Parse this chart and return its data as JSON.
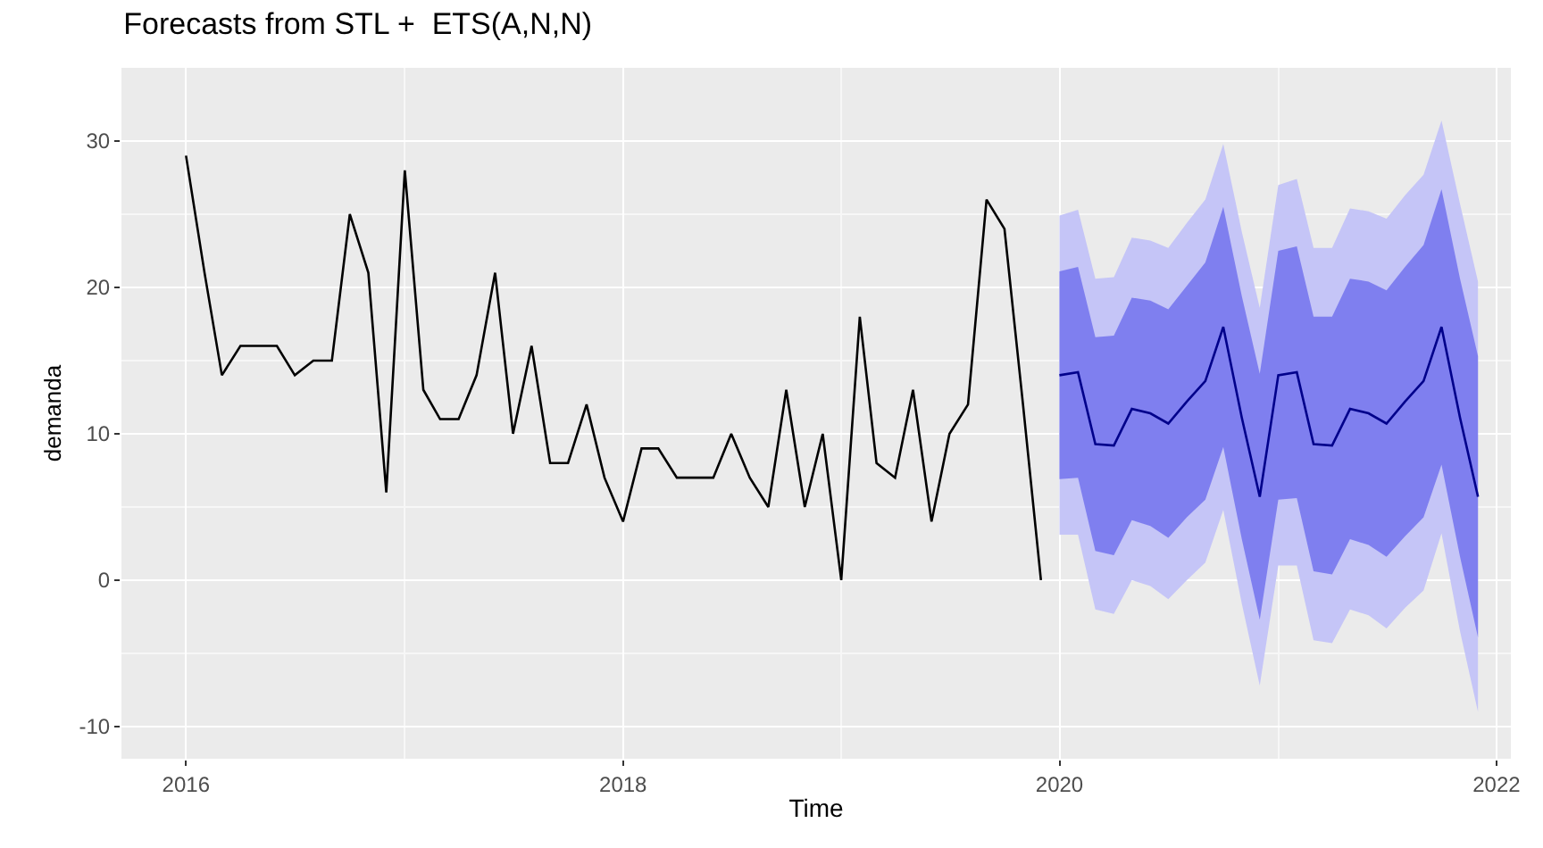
{
  "chart_data": {
    "type": "line",
    "title": "Forecasts from STL +  ETS(A,N,N)",
    "xlabel": "Time",
    "ylabel": "demanda",
    "xlim": [
      "2015-09-15",
      "2022-01-25"
    ],
    "xticks": [
      "2016",
      "2018",
      "2020",
      "2022"
    ],
    "ylim": [
      -12.2,
      35
    ],
    "yticks": [
      -10,
      0,
      10,
      20,
      30
    ],
    "grid": true,
    "series": [
      {
        "color": "#000000",
        "x": [
          "2016-01",
          "2016-02",
          "2016-03",
          "2016-04",
          "2016-05",
          "2016-06",
          "2016-07",
          "2016-08",
          "2016-09",
          "2016-10",
          "2016-11",
          "2016-12",
          "2017-01",
          "2017-02",
          "2017-03",
          "2017-04",
          "2017-05",
          "2017-06",
          "2017-07",
          "2017-08",
          "2017-09",
          "2017-10",
          "2017-11",
          "2017-12",
          "2018-01",
          "2018-02",
          "2018-03",
          "2018-04",
          "2018-05",
          "2018-06",
          "2018-07",
          "2018-08",
          "2018-09",
          "2018-10",
          "2018-11",
          "2018-12",
          "2019-01",
          "2019-02",
          "2019-03",
          "2019-04",
          "2019-05",
          "2019-06",
          "2019-07",
          "2019-08",
          "2019-09",
          "2019-10",
          "2019-11",
          "2019-12"
        ],
        "values": [
          29,
          21,
          14,
          16,
          16,
          16,
          14,
          15,
          15,
          25,
          21,
          6,
          28,
          13,
          11,
          11,
          14,
          21,
          10,
          16,
          8,
          8,
          12,
          7,
          4,
          9,
          9,
          7,
          7,
          7,
          10,
          7,
          5,
          13,
          5,
          10,
          0,
          18,
          8,
          7,
          13,
          4,
          10,
          12,
          26,
          24,
          12,
          0
        ]
      },
      {
        "type": "area",
        "color": "#c5c5f7",
        "x": [
          "2020-01",
          "2020-02",
          "2020-03",
          "2020-04",
          "2020-05",
          "2020-06",
          "2020-07",
          "2020-08",
          "2020-09",
          "2020-10",
          "2020-11",
          "2020-12",
          "2021-01",
          "2021-02",
          "2021-03",
          "2021-04",
          "2021-05",
          "2021-06",
          "2021-07",
          "2021-08",
          "2021-09",
          "2021-10",
          "2021-11",
          "2021-12"
        ],
        "values": [
          null,
          null,
          null,
          null,
          null,
          null,
          null,
          null,
          null,
          null,
          null,
          null,
          null,
          null,
          null,
          null,
          null,
          null,
          null,
          null,
          null,
          null,
          null,
          null
        ],
        "lower": [
          3.1,
          3.1,
          -2.0,
          -2.3,
          0.0,
          -0.4,
          -1.3,
          0.0,
          1.2,
          4.8,
          -1.6,
          -7.2,
          1.0,
          1.0,
          -4.1,
          -4.3,
          -2.0,
          -2.4,
          -3.3,
          -1.9,
          -0.7,
          3.2,
          -3.5,
          -9.0
        ],
        "upper": [
          24.9,
          25.3,
          20.6,
          20.7,
          23.4,
          23.2,
          22.7,
          24.4,
          26.0,
          29.8,
          23.8,
          18.6,
          27.0,
          27.4,
          22.7,
          22.7,
          25.4,
          25.2,
          24.7,
          26.3,
          27.7,
          31.4,
          25.7,
          20.4
        ]
      },
      {
        "type": "area",
        "color": "#7f7fef",
        "x": [
          "2020-01",
          "2020-02",
          "2020-03",
          "2020-04",
          "2020-05",
          "2020-06",
          "2020-07",
          "2020-08",
          "2020-09",
          "2020-10",
          "2020-11",
          "2020-12",
          "2021-01",
          "2021-02",
          "2021-03",
          "2021-04",
          "2021-05",
          "2021-06",
          "2021-07",
          "2021-08",
          "2021-09",
          "2021-10",
          "2021-11",
          "2021-12"
        ],
        "values": [
          null,
          null,
          null,
          null,
          null,
          null,
          null,
          null,
          null,
          null,
          null,
          null,
          null,
          null,
          null,
          null,
          null,
          null,
          null,
          null,
          null,
          null,
          null,
          null
        ],
        "lower": [
          6.9,
          7.0,
          2.0,
          1.7,
          4.1,
          3.7,
          2.9,
          4.3,
          5.5,
          9.1,
          2.8,
          -2.7,
          5.5,
          5.6,
          0.6,
          0.4,
          2.8,
          2.4,
          1.6,
          3.0,
          4.3,
          7.9,
          1.6,
          -3.9
        ],
        "upper": [
          21.1,
          21.4,
          16.6,
          16.7,
          19.3,
          19.1,
          18.5,
          20.1,
          21.7,
          25.5,
          19.4,
          14.1,
          22.5,
          22.8,
          18.0,
          18.0,
          20.6,
          20.4,
          19.8,
          21.4,
          22.9,
          26.7,
          20.6,
          15.3
        ]
      },
      {
        "color": "#00008b",
        "x": [
          "2020-01",
          "2020-02",
          "2020-03",
          "2020-04",
          "2020-05",
          "2020-06",
          "2020-07",
          "2020-08",
          "2020-09",
          "2020-10",
          "2020-11",
          "2020-12",
          "2021-01",
          "2021-02",
          "2021-03",
          "2021-04",
          "2021-05",
          "2021-06",
          "2021-07",
          "2021-08",
          "2021-09",
          "2021-10",
          "2021-11",
          "2021-12"
        ],
        "values": [
          14.0,
          14.2,
          9.3,
          9.2,
          11.7,
          11.4,
          10.7,
          12.2,
          13.6,
          17.3,
          11.1,
          5.7,
          14.0,
          14.2,
          9.3,
          9.2,
          11.7,
          11.4,
          10.7,
          12.2,
          13.6,
          17.3,
          11.1,
          5.7
        ]
      }
    ]
  }
}
